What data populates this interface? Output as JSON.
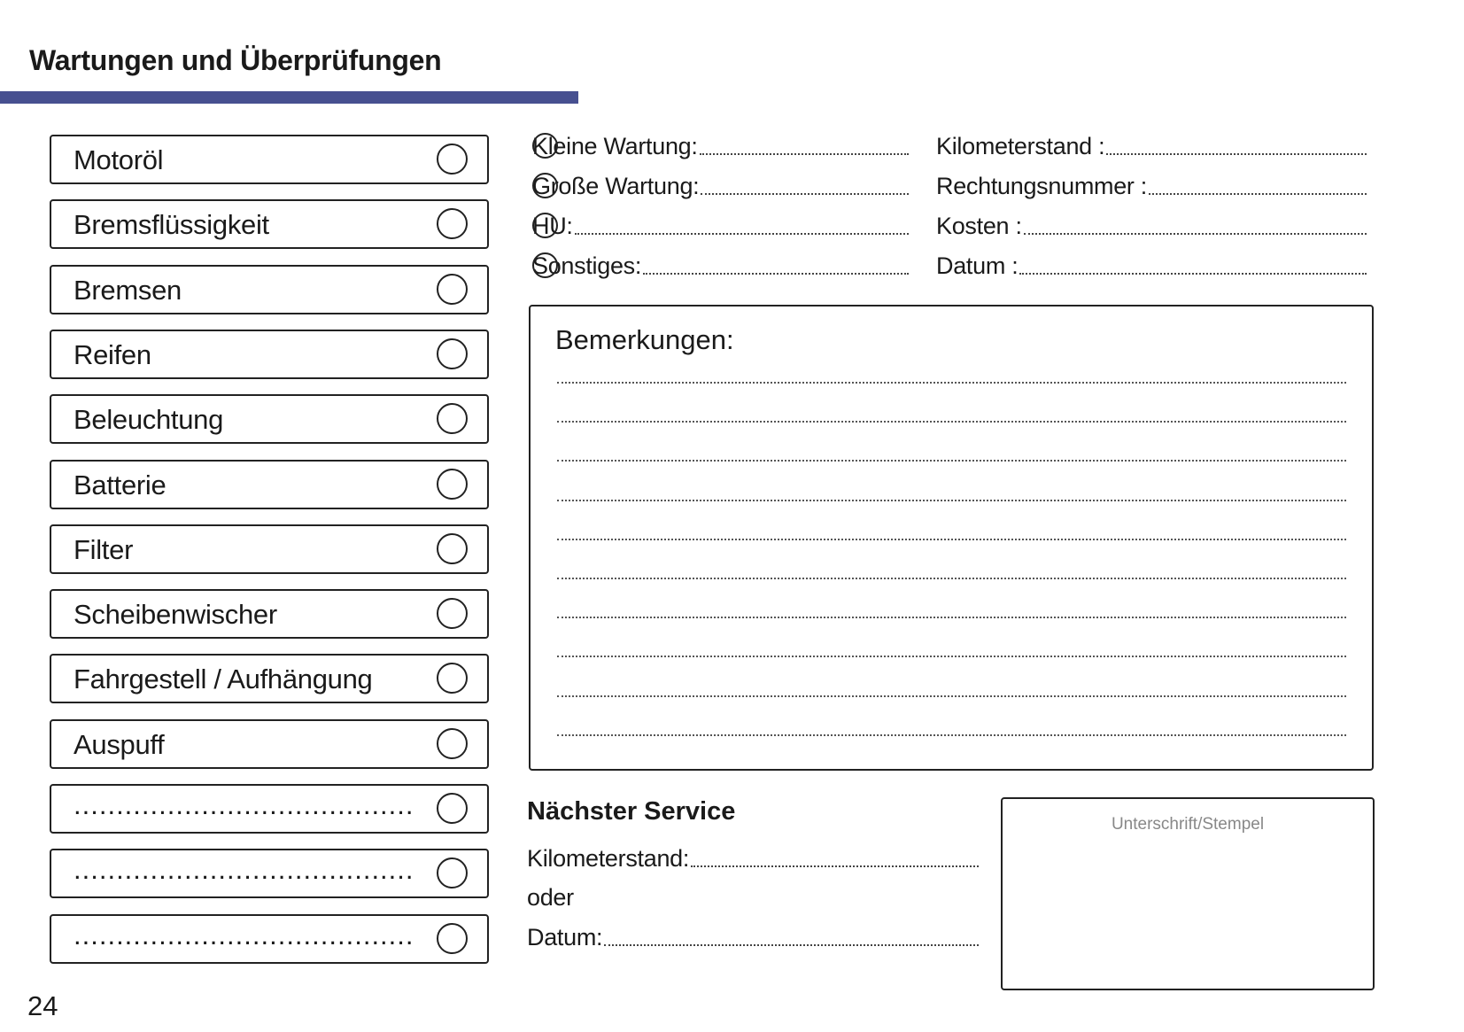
{
  "header": {
    "title": "Wartungen und Überprüfungen",
    "accent_color": "#475090"
  },
  "checklist": [
    {
      "label": "Motoröl"
    },
    {
      "label": "Bremsflüssigkeit"
    },
    {
      "label": "Bremsen"
    },
    {
      "label": "Reifen"
    },
    {
      "label": "Beleuchtung"
    },
    {
      "label": "Batterie"
    },
    {
      "label": "Filter"
    },
    {
      "label": "Scheibenwischer"
    },
    {
      "label": "Fahrgestell / Aufhängung"
    },
    {
      "label": "Auspuff"
    },
    {
      "label": "........................................"
    },
    {
      "label": "........................................"
    },
    {
      "label": "........................................"
    }
  ],
  "service_type": [
    {
      "label": "Kleine Wartung:"
    },
    {
      "label": "Große Wartung:"
    },
    {
      "label": "HU:"
    },
    {
      "label": "Sonstiges:"
    }
  ],
  "details": [
    {
      "label": "Kilometerstand :"
    },
    {
      "label": "Rechtungsnummer :"
    },
    {
      "label": "Kosten :"
    },
    {
      "label": "Datum :"
    }
  ],
  "remarks": {
    "title": "Bemerkungen:",
    "line_count": 10
  },
  "next_service": {
    "title": "Nächster Service",
    "mileage_label": "Kilometerstand:",
    "or_label": "oder",
    "date_label": "Datum:"
  },
  "signature": {
    "label": "Unterschrift/Stempel"
  },
  "page_number": "24"
}
